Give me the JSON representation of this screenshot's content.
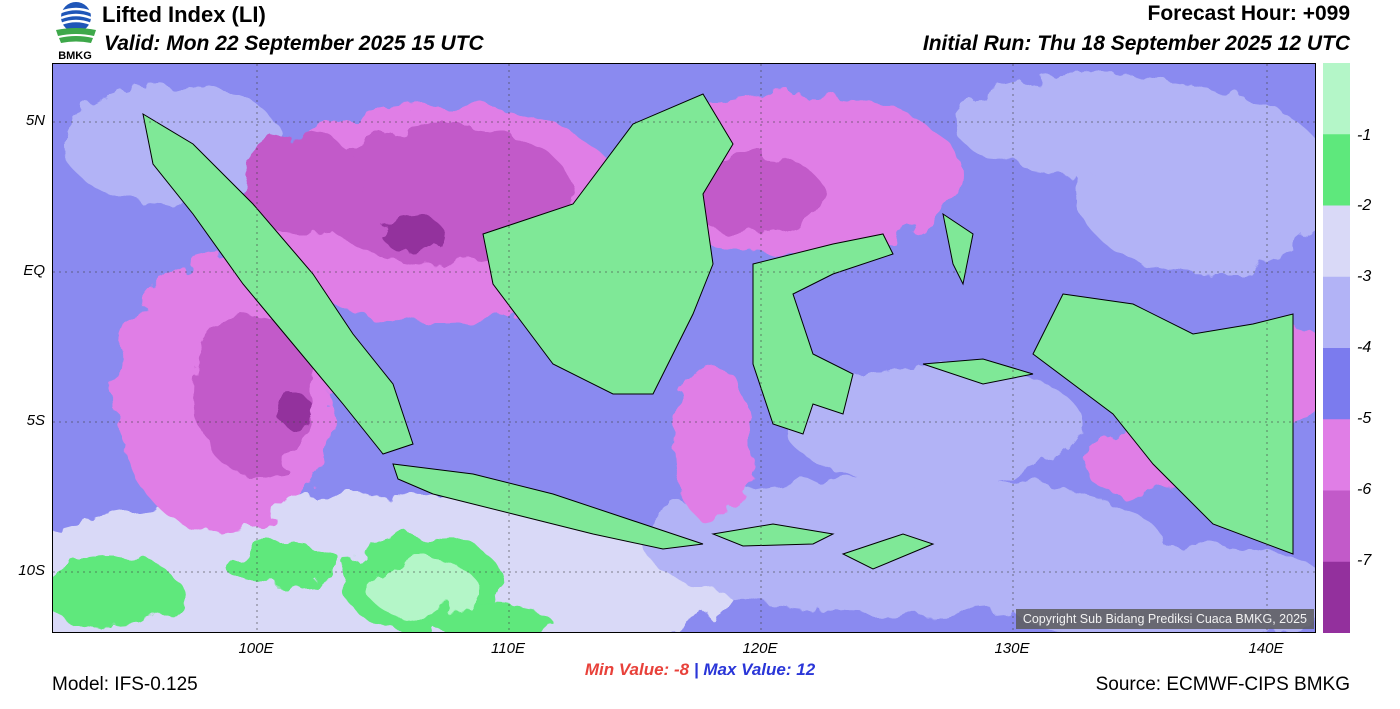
{
  "header": {
    "title": "Lifted Index (LI)",
    "valid": "Valid: Mon 22 September 2025 15 UTC",
    "forecast_hour": "Forecast Hour: +099",
    "initial_run": "Initial Run: Thu 18 September 2025 12 UTC",
    "logo_text": "BMKG"
  },
  "axes": {
    "lat_labels": [
      "5N",
      "EQ",
      "5S",
      "10S"
    ],
    "lon_labels": [
      "100E",
      "110E",
      "120E",
      "130E",
      "140E"
    ]
  },
  "colorbar": {
    "labels": [
      "-1",
      "-2",
      "-3",
      "-4",
      "-5",
      "-6",
      "-7"
    ],
    "colors": [
      "#b4f6c8",
      "#5ee87c",
      "#d9d9f7",
      "#b2b3f6",
      "#7b7bee",
      "#e07ee6",
      "#c25ac9",
      "#93309d"
    ]
  },
  "stats": {
    "min_label": "Min Value:",
    "min_value": "-8",
    "separator": "|",
    "max_label": "Max Value:",
    "max_value": "12"
  },
  "footer": {
    "model": "Model: IFS-0.125",
    "source": "Source: ECMWF-CIPS BMKG",
    "copyright": "Copyright Sub Bidang Prediksi Cuaca BMKG, 2025"
  }
}
